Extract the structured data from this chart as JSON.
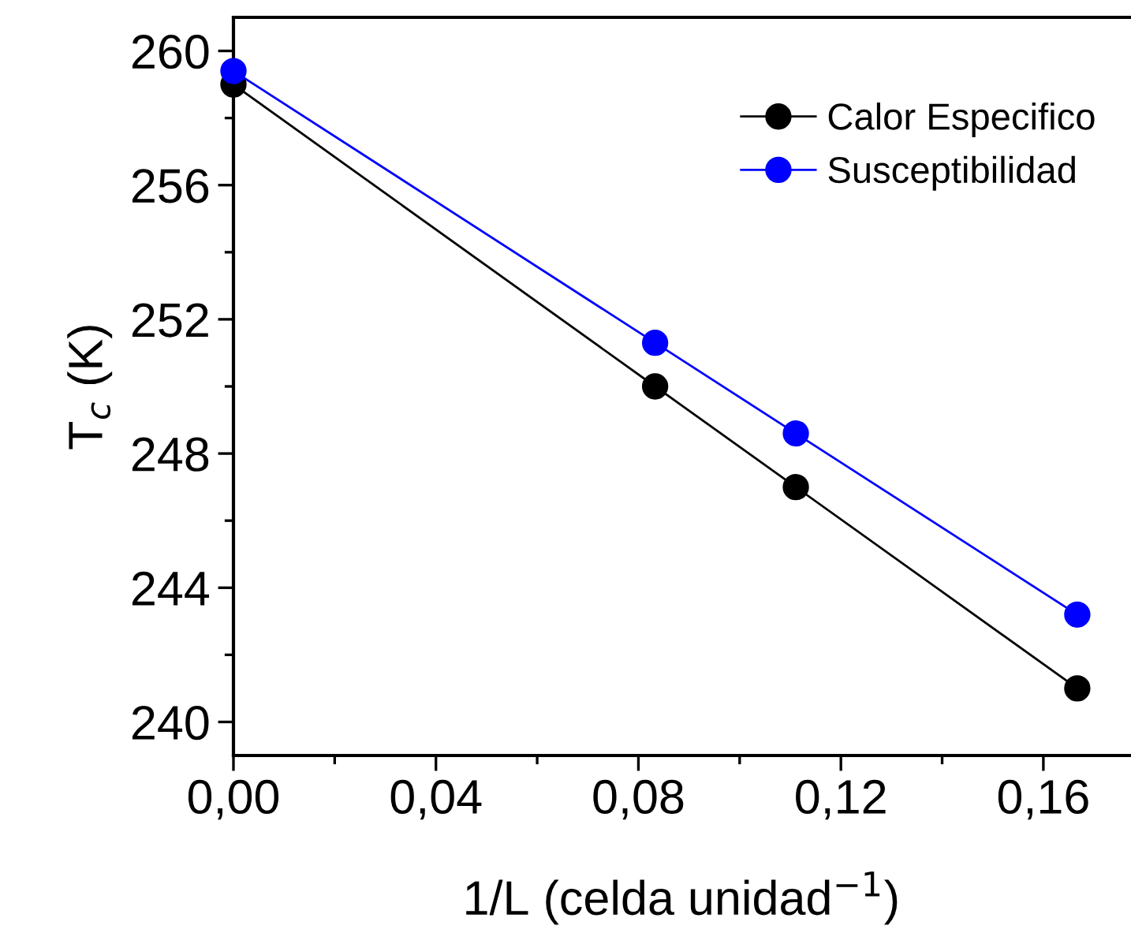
{
  "chart_data": {
    "type": "line",
    "xlabel": "1/L (celda unidad$^{−1}$)",
    "ylabel": "T$_{c}$ (K)",
    "x": [
      0,
      0.0833,
      0.1111,
      0.1667
    ],
    "series": [
      {
        "name": "Calor Especifico",
        "color": "#000000",
        "values": [
          259.0,
          250.0,
          247.0,
          241.0
        ]
      },
      {
        "name": "Susceptibilidad",
        "color": "#0000ff",
        "values": [
          259.4,
          251.3,
          248.6,
          243.2
        ]
      }
    ],
    "xlim": [
      0,
      0.177
    ],
    "ylim": [
      239,
      261
    ],
    "xticks": [
      {
        "value": 0,
        "label": "0,00"
      },
      {
        "value": 0.04,
        "label": "0,04"
      },
      {
        "value": 0.08,
        "label": "0,08"
      },
      {
        "value": 0.12,
        "label": "0,12"
      },
      {
        "value": 0.16,
        "label": "0,16"
      }
    ],
    "yticks": [
      240,
      244,
      248,
      252,
      256,
      260
    ],
    "marker": "circle",
    "line_style": "solid",
    "grid": false,
    "legend": "top right"
  }
}
